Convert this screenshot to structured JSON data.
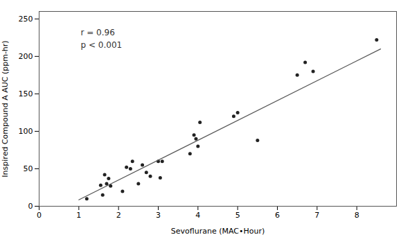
{
  "chart_data": {
    "type": "scatter",
    "xlabel": "Sevoflurane (MAC•Hour)",
    "ylabel": "Inspired Compound A AUC (ppm-hr)",
    "annotation": "r = 0.96\np < 0.001",
    "xlim": [
      0,
      9
    ],
    "xticks": [
      0,
      1,
      2,
      3,
      4,
      5,
      6,
      7,
      8
    ],
    "ylim": [
      0,
      260
    ],
    "yticks": [
      0,
      50,
      100,
      150,
      200,
      250
    ],
    "grid": false,
    "series": [
      {
        "type": "scatter",
        "marker": "circle",
        "color": "#222222",
        "x": [
          1.2,
          1.55,
          1.6,
          1.65,
          1.7,
          1.75,
          1.8,
          2.1,
          2.2,
          2.3,
          2.35,
          2.5,
          2.6,
          2.7,
          2.8,
          3.0,
          3.05,
          3.1,
          3.8,
          3.9,
          3.95,
          4.0,
          4.05,
          4.9,
          5.0,
          5.5,
          6.5,
          6.7,
          6.9,
          8.5
        ],
        "values": [
          10,
          28,
          15,
          42,
          30,
          37,
          27,
          20,
          52,
          50,
          60,
          30,
          55,
          45,
          40,
          60,
          38,
          60,
          70,
          95,
          90,
          80,
          112,
          120,
          125,
          88,
          175,
          192,
          180,
          222
        ]
      },
      {
        "type": "line",
        "line_style": "solid",
        "color": "#555555",
        "x": [
          1.0,
          8.6
        ],
        "values": [
          8.5,
          209.9
        ]
      }
    ]
  }
}
